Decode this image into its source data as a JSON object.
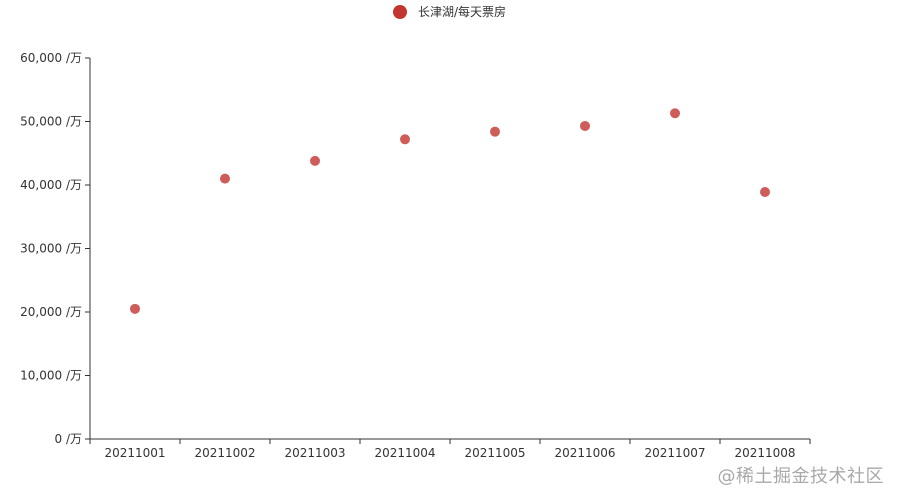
{
  "watermark": "@稀土掘金技术社区",
  "chart_data": {
    "type": "scatter",
    "legend": {
      "label": "长津湖/每天票房",
      "position": "top-center"
    },
    "categories": [
      "20211001",
      "20211002",
      "20211003",
      "20211004",
      "20211005",
      "20211006",
      "20211007",
      "20211008"
    ],
    "series": [
      {
        "name": "长津湖/每天票房",
        "values": [
          20500,
          41000,
          43800,
          47200,
          48400,
          49300,
          51300,
          38900
        ],
        "color": "#c23531"
      }
    ],
    "y_unit": " /万",
    "ylim": [
      0,
      60000
    ],
    "yticks": [
      0,
      10000,
      20000,
      30000,
      40000,
      50000,
      60000
    ],
    "ytick_labels": [
      "0 /万",
      "10,000 /万",
      "20,000 /万",
      "30,000 /万",
      "40,000 /万",
      "50,000 /万",
      "60,000 /万"
    ],
    "grid": false,
    "colors": {
      "point": "#c23531",
      "axis": "#333333",
      "label": "#333333"
    }
  }
}
